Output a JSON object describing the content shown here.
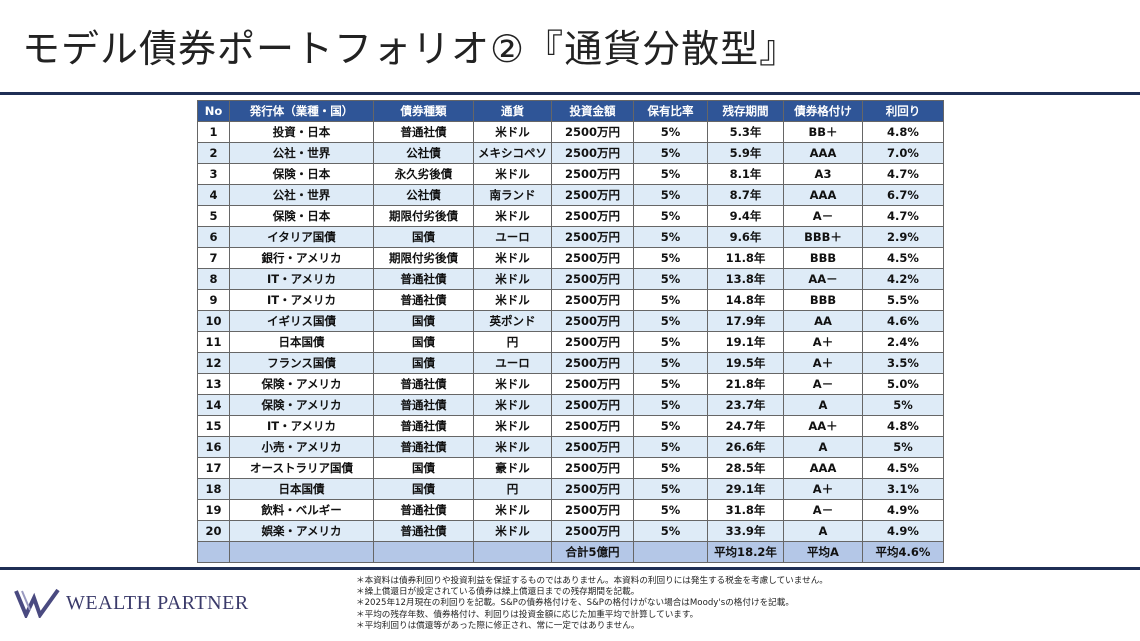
{
  "title": "モデル債券ポートフォリオ②『通貨分散型』",
  "table": {
    "headers": [
      "No",
      "発行体（業種・国）",
      "債券種類",
      "通貨",
      "投資金額",
      "保有比率",
      "残存期間",
      "債券格付け",
      "利回り"
    ],
    "rows": [
      [
        "1",
        "投資・日本",
        "普通社債",
        "米ドル",
        "2500万円",
        "5%",
        "5.3年",
        "BB＋",
        "4.8%"
      ],
      [
        "2",
        "公社・世界",
        "公社債",
        "メキシコペソ",
        "2500万円",
        "5%",
        "5.9年",
        "AAA",
        "7.0%"
      ],
      [
        "3",
        "保険・日本",
        "永久劣後債",
        "米ドル",
        "2500万円",
        "5%",
        "8.1年",
        "A3",
        "4.7%"
      ],
      [
        "4",
        "公社・世界",
        "公社債",
        "南ランド",
        "2500万円",
        "5%",
        "8.7年",
        "AAA",
        "6.7%"
      ],
      [
        "5",
        "保険・日本",
        "期限付劣後債",
        "米ドル",
        "2500万円",
        "5%",
        "9.4年",
        "A－",
        "4.7%"
      ],
      [
        "6",
        "イタリア国債",
        "国債",
        "ユーロ",
        "2500万円",
        "5%",
        "9.6年",
        "BBB＋",
        "2.9%"
      ],
      [
        "7",
        "銀行・アメリカ",
        "期限付劣後債",
        "米ドル",
        "2500万円",
        "5%",
        "11.8年",
        "BBB",
        "4.5%"
      ],
      [
        "8",
        "IT・アメリカ",
        "普通社債",
        "米ドル",
        "2500万円",
        "5%",
        "13.8年",
        "AA－",
        "4.2%"
      ],
      [
        "9",
        "IT・アメリカ",
        "普通社債",
        "米ドル",
        "2500万円",
        "5%",
        "14.8年",
        "BBB",
        "5.5%"
      ],
      [
        "10",
        "イギリス国債",
        "国債",
        "英ポンド",
        "2500万円",
        "5%",
        "17.9年",
        "AA",
        "4.6%"
      ],
      [
        "11",
        "日本国債",
        "国債",
        "円",
        "2500万円",
        "5%",
        "19.1年",
        "A＋",
        "2.4%"
      ],
      [
        "12",
        "フランス国債",
        "国債",
        "ユーロ",
        "2500万円",
        "5%",
        "19.5年",
        "A＋",
        "3.5%"
      ],
      [
        "13",
        "保険・アメリカ",
        "普通社債",
        "米ドル",
        "2500万円",
        "5%",
        "21.8年",
        "A－",
        "5.0%"
      ],
      [
        "14",
        "保険・アメリカ",
        "普通社債",
        "米ドル",
        "2500万円",
        "5%",
        "23.7年",
        "A",
        "5%"
      ],
      [
        "15",
        "IT・アメリカ",
        "普通社債",
        "米ドル",
        "2500万円",
        "5%",
        "24.7年",
        "AA＋",
        "4.8%"
      ],
      [
        "16",
        "小売・アメリカ",
        "普通社債",
        "米ドル",
        "2500万円",
        "5%",
        "26.6年",
        "A",
        "5%"
      ],
      [
        "17",
        "オーストラリア国債",
        "国債",
        "豪ドル",
        "2500万円",
        "5%",
        "28.5年",
        "AAA",
        "4.5%"
      ],
      [
        "18",
        "日本国債",
        "国債",
        "円",
        "2500万円",
        "5%",
        "29.1年",
        "A＋",
        "3.1%"
      ],
      [
        "19",
        "飲料・ベルギー",
        "普通社債",
        "米ドル",
        "2500万円",
        "5%",
        "31.8年",
        "A－",
        "4.9%"
      ],
      [
        "20",
        "娯楽・アメリカ",
        "普通社債",
        "米ドル",
        "2500万円",
        "5%",
        "33.9年",
        "A",
        "4.9%"
      ]
    ],
    "total": [
      "",
      "",
      "",
      "",
      "合計5億円",
      "",
      "平均18.2年",
      "平均A",
      "平均4.6%"
    ]
  },
  "footer": {
    "logo_text": "WEALTH PARTNER",
    "notes": [
      "＊本資料は債券利回りや投資利益を保証するものではありません。本資料の利回りには発生する税金を考慮していません。",
      "＊繰上償還日が設定されている債券は繰上償還日までの残存期間を記載。",
      "＊2025年12月現在の利回りを記載。S&Pの債券格付けを、S&Pの格付けがない場合はMoody'sの格付けを記載。",
      "＊平均の残存年数、債券格付け、利回りは投資金額に応じた加重平均で計算しています。",
      "＊平均利回りは償還等があった際に修正され、常に一定ではありません。"
    ]
  }
}
